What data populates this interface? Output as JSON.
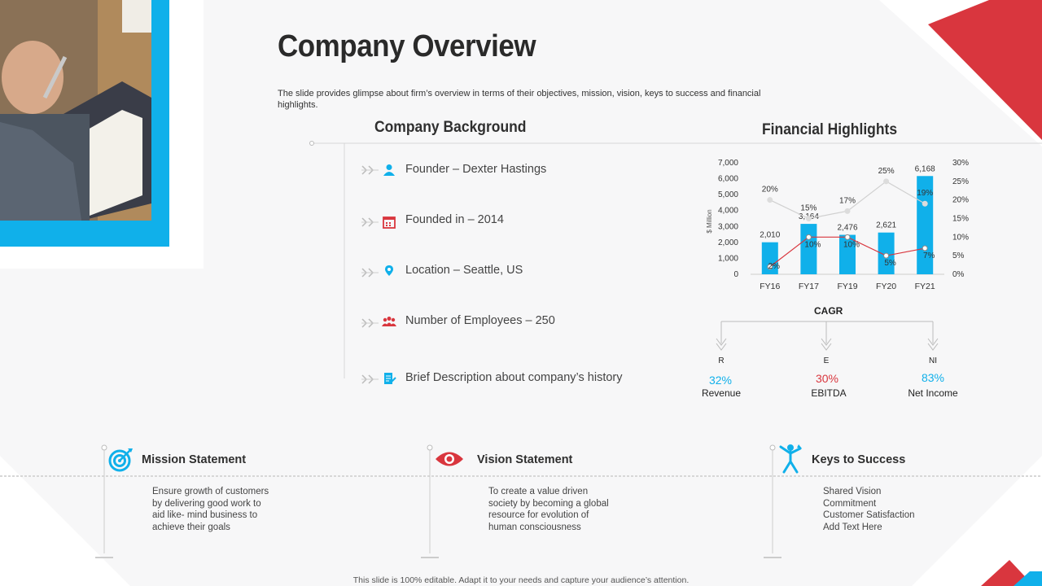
{
  "slide": {
    "title": "Company Overview",
    "subtitle": "The slide provides glimpse about firm’s overview in terms of their objectives, mission, vision, keys to success and financial highlights.",
    "footer": "This slide is 100% editable. Adapt it to your needs and capture your audience’s attention."
  },
  "colors": {
    "accent_blue": "#10b0ea",
    "accent_red": "#d9363e",
    "text": "#333333"
  },
  "background": {
    "heading": "Company Background",
    "items": [
      {
        "icon": "person-icon",
        "text": "Founder – Dexter Hastings"
      },
      {
        "icon": "calendar-icon",
        "text": "Founded in – 2014"
      },
      {
        "icon": "location-pin-icon",
        "text": "Location – Seattle, US"
      },
      {
        "icon": "people-group-icon",
        "text": "Number of Employees – 250"
      },
      {
        "icon": "document-edit-icon",
        "text": "Brief Description about company’s history"
      }
    ]
  },
  "financial": {
    "heading": "Financial Highlights"
  },
  "chart_data": {
    "type": "bar",
    "categories": [
      "FY16",
      "FY17",
      "FY19",
      "FY20",
      "FY21"
    ],
    "ylabel": "$ Million",
    "ylim": [
      0,
      7000
    ],
    "yticks": [
      "0",
      "1,000",
      "2,000",
      "3,000",
      "4,000",
      "5,000",
      "6,000",
      "7,000"
    ],
    "y2lim": [
      0,
      30
    ],
    "y2ticks": [
      "0%",
      "5%",
      "10%",
      "15%",
      "20%",
      "25%",
      "30%"
    ],
    "series": [
      {
        "type": "bar",
        "values": [
          2010,
          3164,
          2476,
          2621,
          6168
        ],
        "labels": [
          "2,010",
          "3,164",
          "2,476",
          "2,621",
          "6,168"
        ],
        "color": "#10b0ea"
      },
      {
        "type": "line",
        "values": [
          20,
          15,
          17,
          25,
          19
        ],
        "labels": [
          "20%",
          "15%",
          "17%",
          "25%",
          "19%"
        ],
        "color": "#d0d0d0"
      },
      {
        "type": "line",
        "values": [
          2,
          10,
          10,
          5,
          7
        ],
        "labels": [
          "2%",
          "10%",
          "10%",
          "5%",
          "7%"
        ],
        "color": "#d9363e"
      }
    ],
    "grid": false,
    "legend": "none"
  },
  "cagr": {
    "title": "CAGR",
    "items": [
      {
        "letter": "R",
        "value": "32%",
        "label": "Revenue",
        "color": "#10b0ea"
      },
      {
        "letter": "E",
        "value": "30%",
        "label": "EBITDA",
        "color": "#d9363e"
      },
      {
        "letter": "NI",
        "value": "83%",
        "label": "Net Income",
        "color": "#10b0ea"
      }
    ]
  },
  "statements": {
    "mission": {
      "icon": "target-icon",
      "title": "Mission Statement",
      "body": "Ensure growth of customers\nby delivering good work to\naid like- mind business to\nachieve their goals"
    },
    "vision": {
      "icon": "eye-icon",
      "title": "Vision Statement",
      "body": "To create  a value driven\nsociety by becoming a global\nresource for evolution of\nhuman consciousness"
    },
    "keys": {
      "icon": "success-person-icon",
      "title": "Keys to Success",
      "body": "Shared Vision\nCommitment\nCustomer Satisfaction\nAdd Text Here"
    }
  }
}
